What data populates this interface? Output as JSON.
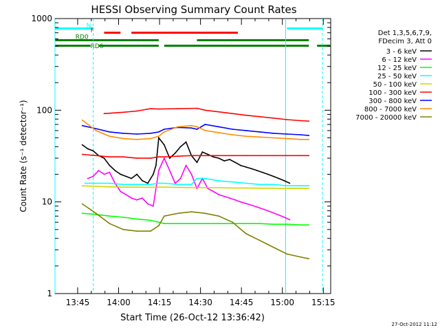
{
  "chart_data": {
    "type": "line",
    "title": "HESSI Observing Summary Count Rates",
    "xlabel": "Start Time (26-Oct-12 13:36:42)",
    "ylabel": "Count Rate (s⁻¹ detector⁻¹)",
    "yscale": "log",
    "ylim": [
      1,
      1000
    ],
    "xlim_minutes": [
      0,
      101
    ],
    "x_ticks": [
      "13:45",
      "14:00",
      "14:15",
      "14:30",
      "14:45",
      "15:00",
      "15:15"
    ],
    "x_tick_minutes": [
      8.3,
      23.3,
      38.3,
      53.3,
      68.3,
      83.3,
      98.3
    ],
    "y_ticks": [
      "1",
      "10",
      "100",
      "1000"
    ],
    "y_tick_values": [
      1,
      10,
      100,
      1000
    ],
    "timestamp": "27-Oct-2012 11:12",
    "legend": {
      "header": [
        "Det 1,3,5,6,7,9,",
        "FDecim 3, Att 0"
      ],
      "placement": "right"
    },
    "colors": {
      "black": "#000000",
      "magenta": "#ff00ff",
      "green": "#00ff00",
      "cyan": "#00ffff",
      "yellow": "#d4d400",
      "red": "#ff0000",
      "blue": "#0000ff",
      "orange": "#ff8c00",
      "olive": "#808000",
      "darkgreen": "#008000"
    },
    "flags": [
      {
        "name": "N",
        "color": "#00ffff",
        "segments": [
          [
            0,
            14
          ],
          [
            85,
            98
          ]
        ],
        "level": 780
      },
      {
        "name": "F",
        "color": "#ff0000",
        "segments": [
          [
            18,
            24
          ],
          [
            28,
            67
          ]
        ],
        "level": 700
      },
      {
        "name": "RD0",
        "color": "#008000",
        "segments": [
          [
            0,
            38
          ],
          [
            52,
            93
          ]
        ],
        "level": 580
      },
      {
        "name": "RD6",
        "color": "#008000",
        "segments": [
          [
            0,
            13
          ],
          [
            16,
            38
          ],
          [
            40,
            52
          ],
          [
            52,
            93
          ],
          [
            96,
            101
          ]
        ],
        "level": 505
      }
    ],
    "vertical_lines": [
      {
        "minute": 0,
        "style": "solid",
        "color": "#00ffff"
      },
      {
        "minute": 14,
        "style": "dashed",
        "color": "#00ffff"
      },
      {
        "minute": 84.5,
        "style": "solid",
        "color": "#00ffff"
      },
      {
        "minute": 98,
        "style": "dashed",
        "color": "#00ffff"
      }
    ],
    "series": [
      {
        "name": "3 - 6 keV",
        "color": "#000000",
        "x": [
          10,
          12,
          14,
          16,
          18,
          20,
          22,
          24,
          26,
          28,
          30,
          32,
          34,
          36,
          37,
          38,
          40,
          42,
          44,
          46,
          48,
          50,
          52,
          54,
          56,
          58,
          60,
          62,
          64,
          66,
          68,
          70,
          72,
          74,
          76,
          78,
          80,
          82,
          84,
          86
        ],
        "values": [
          42,
          38,
          36,
          32,
          30,
          25,
          22,
          20,
          19,
          18,
          20,
          17,
          16,
          20,
          25,
          50,
          42,
          30,
          34,
          40,
          45,
          32,
          27,
          35,
          33,
          31,
          30,
          28,
          29,
          27,
          25,
          24,
          23,
          22,
          21,
          20,
          19,
          18,
          17,
          16
        ]
      },
      {
        "name": "6 - 12 keV",
        "color": "#ff00ff",
        "x": [
          12,
          14,
          16,
          18,
          20,
          22,
          24,
          26,
          28,
          30,
          32,
          34,
          36,
          38,
          40,
          42,
          44,
          46,
          48,
          50,
          52,
          54,
          56,
          58,
          60,
          62,
          64,
          66,
          68,
          70,
          72,
          74,
          76,
          78,
          80,
          82,
          84,
          86
        ],
        "values": [
          18,
          19,
          22,
          20,
          21,
          16,
          13,
          12,
          11,
          10.5,
          11,
          9.5,
          9,
          22,
          30,
          22,
          16,
          18,
          25,
          20,
          14,
          18,
          14,
          13,
          12,
          11.5,
          11,
          10.5,
          10,
          9.6,
          9.2,
          8.8,
          8.4,
          8.0,
          7.6,
          7.2,
          6.8,
          6.4
        ]
      },
      {
        "name": "12 - 25 keV",
        "color": "#00ff00",
        "x": [
          10,
          15,
          20,
          25,
          30,
          35,
          38,
          40,
          45,
          50,
          55,
          60,
          65,
          70,
          75,
          80,
          85,
          90,
          93
        ],
        "values": [
          7.5,
          7.3,
          7.0,
          6.8,
          6.5,
          6.3,
          6.0,
          5.8,
          5.8,
          5.8,
          5.8,
          5.8,
          5.8,
          5.8,
          5.8,
          5.7,
          5.7,
          5.6,
          5.6
        ]
      },
      {
        "name": "25 - 50 keV",
        "color": "#00ffff",
        "x": [
          11,
          15,
          20,
          25,
          30,
          35,
          38,
          40,
          45,
          50,
          52,
          55,
          60,
          65,
          70,
          75,
          80,
          85,
          90,
          93
        ],
        "values": [
          16,
          16,
          16,
          15.5,
          15.5,
          15.5,
          16,
          16,
          15.5,
          15.5,
          18,
          18,
          17,
          16.5,
          16,
          15.5,
          15.5,
          15,
          15,
          15
        ]
      },
      {
        "name": "50 - 100 keV",
        "color": "#d4d400",
        "x": [
          10,
          15,
          20,
          25,
          30,
          35,
          38,
          40,
          45,
          50,
          55,
          60,
          65,
          70,
          75,
          80,
          85,
          90,
          93
        ],
        "values": [
          15,
          14.8,
          14.6,
          14.5,
          14.5,
          14.4,
          14.5,
          14.5,
          14.4,
          14.3,
          14.3,
          14.3,
          14.2,
          14.2,
          14.1,
          14.1,
          14.0,
          14.0,
          14.0
        ]
      },
      {
        "name": "100 - 300 keV",
        "color": "#ff0000",
        "x": [
          10,
          15,
          20,
          25,
          30,
          35,
          38,
          40,
          45,
          50,
          55,
          60,
          65,
          70,
          75,
          80,
          85,
          90,
          93
        ],
        "values": [
          33,
          32,
          31,
          31,
          30,
          30,
          31,
          31,
          31.5,
          32,
          32,
          32,
          32,
          32,
          32,
          32,
          32,
          32,
          32
        ]
      },
      {
        "name": "300 - 800 keV",
        "color": "#0000ff",
        "x": [
          10,
          15,
          20,
          25,
          30,
          35,
          38,
          40,
          45,
          50,
          52,
          55,
          60,
          65,
          70,
          75,
          80,
          85,
          90,
          93
        ],
        "values": [
          68,
          63,
          58,
          56,
          55,
          56,
          58,
          62,
          65,
          64,
          62,
          70,
          66,
          62,
          60,
          58,
          56,
          55,
          54,
          53
        ]
      },
      {
        "name": "800 - 7000 keV",
        "color": "#ff8c00",
        "x": [
          10,
          15,
          20,
          25,
          30,
          35,
          38,
          40,
          45,
          50,
          52,
          55,
          60,
          65,
          70,
          75,
          80,
          85,
          90,
          93
        ],
        "values": [
          78,
          60,
          52,
          49,
          48,
          49,
          52,
          58,
          66,
          68,
          66,
          60,
          57,
          54,
          52,
          51,
          50,
          49,
          48,
          48
        ]
      },
      {
        "name": "7000 - 20000 keV",
        "color": "#808000",
        "x": [
          10,
          15,
          20,
          25,
          30,
          35,
          38,
          40,
          45,
          50,
          55,
          60,
          65,
          70,
          75,
          80,
          85,
          90,
          93
        ],
        "values": [
          9.5,
          7.5,
          5.8,
          5.0,
          4.8,
          4.8,
          5.5,
          7.0,
          7.5,
          7.8,
          7.5,
          7.0,
          6.0,
          4.5,
          3.8,
          3.2,
          2.7,
          2.5,
          2.4
        ]
      },
      {
        "name": "100 - 300 keV (high)",
        "color": "#ff0000",
        "legend": false,
        "x": [
          18,
          25,
          30,
          35,
          38,
          52,
          55,
          60,
          65,
          70,
          75,
          80,
          85,
          90,
          93
        ],
        "values": [
          92,
          95,
          98,
          104,
          103,
          105,
          100,
          96,
          92,
          88,
          85,
          82,
          79,
          77,
          76
        ]
      }
    ]
  }
}
